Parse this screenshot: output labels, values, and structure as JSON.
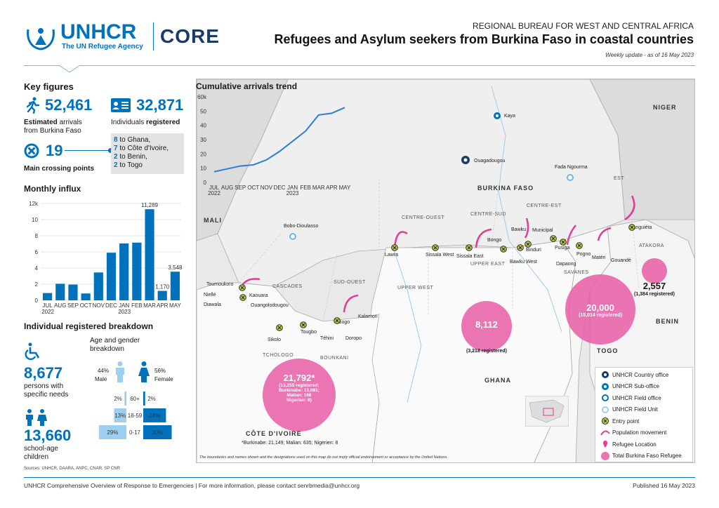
{
  "header": {
    "logo_name": "UNHCR",
    "logo_sub": "The UN Refugee Agency",
    "core": "CORE",
    "bureau": "REGIONAL BUREAU FOR WEST AND CENTRAL AFRICA",
    "title": "Refugees and Asylum seekers from Burkina Faso in coastal countries",
    "subtitle": "Weekly update - as of 16 May 2023"
  },
  "key_figures": {
    "title": "Key figures",
    "arrivals_value": "52,461",
    "arrivals_bold": "Estimated",
    "arrivals_label1": " arrivals",
    "arrivals_label2": "from Burkina Faso",
    "registered_value": "32,871",
    "registered_label1": "Individuals ",
    "registered_label2": "registered",
    "crossing_value": "19",
    "crossing_label": "Main crossing points",
    "crossing_breakdown": [
      {
        "n": "8",
        "t": " to Ghana,"
      },
      {
        "n": "7",
        "t": " to Côte d'Ivoire,"
      },
      {
        "n": "2",
        "t": " to Benin,"
      },
      {
        "n": "2",
        "t": " to Togo"
      }
    ]
  },
  "monthly": {
    "title": "Monthly influx",
    "chart_data": {
      "type": "bar",
      "categories": [
        "JUL",
        "AUG",
        "SEP",
        "OCT",
        "NOV",
        "DEC",
        "JAN",
        "FEB",
        "MAR",
        "APR",
        "MAY"
      ],
      "year_labels": [
        "2022",
        "2023"
      ],
      "values": [
        900,
        2050,
        1950,
        850,
        3450,
        5900,
        7050,
        7150,
        11289,
        1170,
        3548
      ],
      "data_labels": {
        "8": "11,289",
        "9": "1,170",
        "10": "3,548"
      },
      "y_ticks": [
        "0",
        "2",
        "4",
        "6",
        "8",
        "10",
        "12k"
      ],
      "ylim": [
        0,
        12000
      ],
      "color": "#0072bc"
    }
  },
  "trend": {
    "title": "Cumulative arrivals trend",
    "chart_data": {
      "type": "line",
      "categories": [
        "JUL",
        "AUG",
        "SEP",
        "OCT",
        "NOV",
        "DEC",
        "JAN",
        "FEB",
        "MAR",
        "APR",
        "MAY"
      ],
      "year_labels": [
        "2022",
        "2023"
      ],
      "values": [
        7500,
        9500,
        11500,
        12300,
        15800,
        21700,
        28800,
        36000,
        47300,
        48500,
        52461
      ],
      "y_ticks": [
        "0",
        "10",
        "20",
        "30",
        "40",
        "50",
        "60k"
      ],
      "ylim": [
        0,
        60000
      ],
      "color": "#2b7fd4"
    }
  },
  "breakdown": {
    "title": "Individual registered breakdown",
    "specific_needs_value": "8,677",
    "specific_needs_label": "persons with specific needs",
    "school_value": "13,660",
    "school_label": "school-age children",
    "age_title": "Age and gender breakdown",
    "male_pct": "44%",
    "male_label": "Male",
    "female_pct": "56%",
    "female_label": "Female",
    "pyramid": [
      {
        "group": "60+",
        "male": "2%",
        "female": "2%",
        "m": 2,
        "f": 2
      },
      {
        "group": "18-59",
        "male": "13%",
        "female": "24%",
        "m": 13,
        "f": 24
      },
      {
        "group": "0-17",
        "male": "29%",
        "female": "30%",
        "m": 29,
        "f": 30
      }
    ],
    "sources": "Sources: UNHCR, DAARA, ANPC, CNAR, SP CNR"
  },
  "map": {
    "countries": [
      "NIGER",
      "MALI",
      "BURKINA FASO",
      "GHANA",
      "BENIN",
      "TOGO",
      "CÔTE D'IVOIRE"
    ],
    "regions": [
      "EST",
      "CENTRE-OUEST",
      "CENTRE-SUD",
      "CENTRE-EST",
      "UPPER EAST",
      "UPPER WEST",
      "CASCADES",
      "SUD-OUEST",
      "SAVANES",
      "ATAKORA",
      "TCHOLOGO",
      "BOUNKANI"
    ],
    "places": [
      "Kaya",
      "Ouagadougou",
      "Fada Ngourma",
      "Bobo-Dioulasso",
      "Lawra",
      "Sissala West",
      "Sissala East",
      "Bongo",
      "Bawku",
      "Bawku West",
      "Binduri",
      "Municipal",
      "Pusiga",
      "Dapaong",
      "Pogno",
      "Matéri",
      "Tanguiéta",
      "Gouandé",
      "Toumoukoro",
      "Niellé",
      "Diawala",
      "Kaouara",
      "Ouangolodougou",
      "Sikolo",
      "Tougbo",
      "Gogo",
      "Kalamon",
      "Téhini",
      "Doropo"
    ],
    "bubbles": {
      "togo": {
        "value": "20,000",
        "sub": "(15,014 registered)"
      },
      "ghana": {
        "value": "8,112",
        "sub": "(3,218 registered)"
      },
      "benin": {
        "value": "2,557",
        "sub": "(1,384 registered)"
      },
      "civ": {
        "value": "21,792*",
        "sub1": "(13,255 registered:",
        "sub2": "Burkinabe: 13,081;",
        "sub3": "Malian: 166",
        "sub4": "Nigerien: 8)"
      }
    },
    "civ_note": "*Burkinabe: 21,149; Malian: 635; Nigerien: 8",
    "disclaimer": "The boundaries and names shown and the designations used on this map do not imply official endorsement or acceptance by the United Nations.",
    "legend": [
      "UNHCR Country office",
      "UNHCR Sub-office",
      "UNHCR Field office",
      "UNHCR Field Unit",
      "Entry point",
      "Population movement",
      "Refugee Location",
      "Total Burkina Faso Refugee"
    ]
  },
  "footer": {
    "left": "UNHCR Comprehensive Overview of Response to Emergencies | For more information, please contact senrbmedia@unhcr.org",
    "right": "Published 16 May 2023"
  }
}
